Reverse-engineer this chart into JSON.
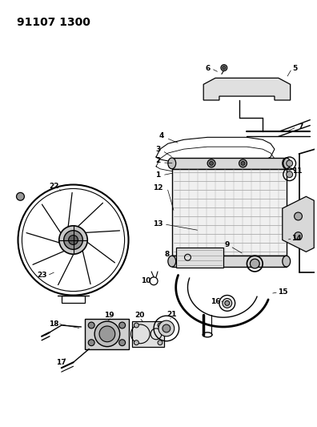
{
  "title_text": "91107 1300",
  "bg_color": "#ffffff",
  "line_color": "#000000",
  "fig_width": 3.96,
  "fig_height": 5.33,
  "dpi": 100,
  "label_fontsize": 6.5,
  "title_fontsize": 10
}
